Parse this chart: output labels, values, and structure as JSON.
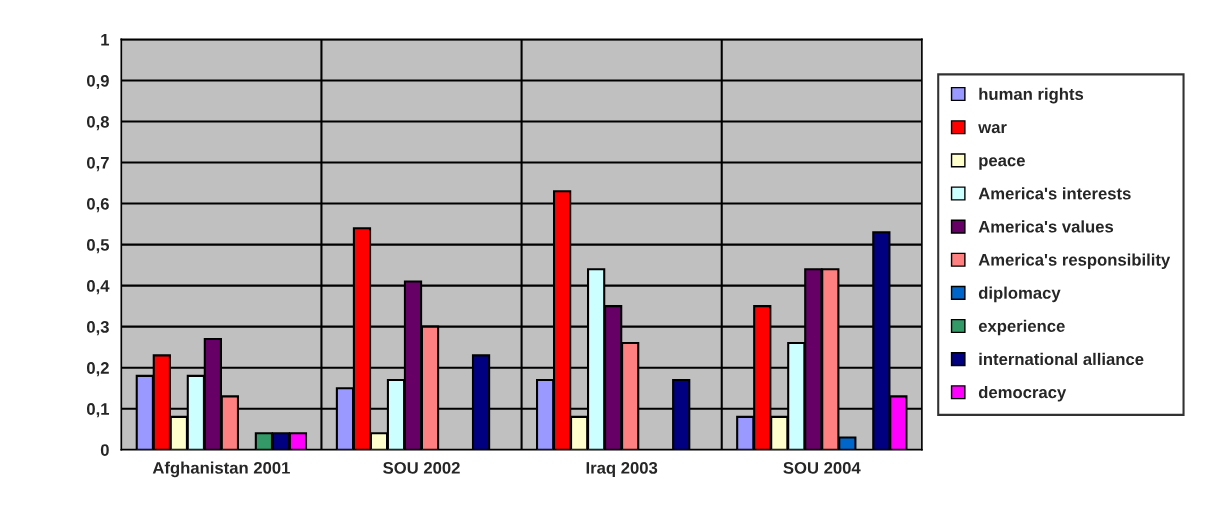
{
  "chart_data": {
    "type": "bar",
    "categories": [
      "Afghanistan 2001",
      "SOU 2002",
      "Iraq 2003",
      "SOU 2004"
    ],
    "series": [
      {
        "name": "human rights",
        "color": "#9999ff",
        "values": [
          0.18,
          0.15,
          0.17,
          0.08
        ]
      },
      {
        "name": "war",
        "color": "#ff0000",
        "values": [
          0.23,
          0.54,
          0.63,
          0.35
        ]
      },
      {
        "name": "peace",
        "color": "#ffffcc",
        "values": [
          0.08,
          0.04,
          0.08,
          0.08
        ]
      },
      {
        "name": "America's interests",
        "color": "#ccffff",
        "values": [
          0.18,
          0.17,
          0.44,
          0.26
        ]
      },
      {
        "name": "America's values",
        "color": "#660066",
        "values": [
          0.27,
          0.41,
          0.35,
          0.44
        ]
      },
      {
        "name": "America's responsibility",
        "color": "#ff8080",
        "values": [
          0.13,
          0.3,
          0.26,
          0.44
        ]
      },
      {
        "name": "diplomacy",
        "color": "#0066cc",
        "values": [
          null,
          null,
          null,
          0.03
        ]
      },
      {
        "name": "experience",
        "color": "#339966",
        "values": [
          0.04,
          null,
          null,
          null
        ]
      },
      {
        "name": "international alliance",
        "color": "#000080",
        "values": [
          0.04,
          0.23,
          0.17,
          0.53
        ]
      },
      {
        "name": "democracy",
        "color": "#ff00ff",
        "values": [
          0.04,
          null,
          null,
          0.13
        ]
      }
    ],
    "ylim": [
      0,
      1
    ],
    "yticks": [
      0,
      {
        "value": 0.1,
        "label": "0,1"
      },
      {
        "value": 0.2,
        "label": "0,2"
      },
      {
        "value": 0.3,
        "label": "0,3"
      },
      {
        "value": 0.4,
        "label": "0,4"
      },
      {
        "value": 0.5,
        "label": "0,5"
      },
      {
        "value": 0.6,
        "label": "0,6"
      },
      {
        "value": 0.7,
        "label": "0,7"
      },
      {
        "value": 0.8,
        "label": "0,8"
      },
      {
        "value": 0.9,
        "label": "0,9"
      },
      1
    ],
    "grid": "y",
    "legend": "right"
  }
}
